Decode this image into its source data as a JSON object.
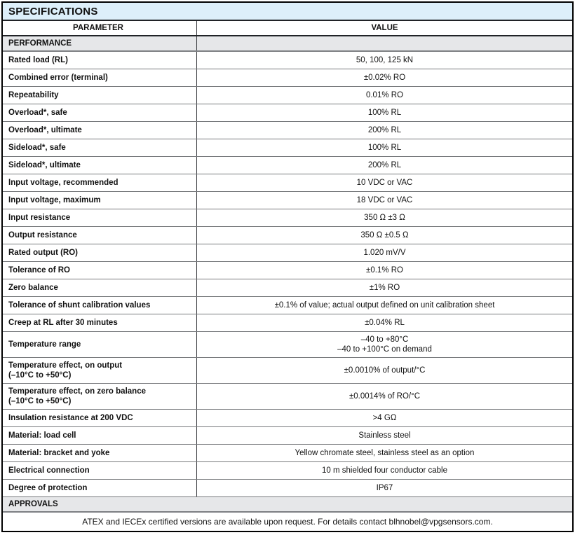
{
  "table": {
    "title": "SPECIFICATIONS",
    "columns": {
      "parameter": "PARAMETER",
      "value": "VALUE"
    },
    "sections": {
      "performance": "PERFORMANCE",
      "approvals": "APPROVALS"
    },
    "rows": [
      {
        "param": [
          "Rated load (RL)"
        ],
        "value": [
          "50, 100, 125 kN"
        ]
      },
      {
        "param": [
          "Combined error (terminal)"
        ],
        "value": [
          "±0.02% RO"
        ]
      },
      {
        "param": [
          "Repeatability"
        ],
        "value": [
          "0.01% RO"
        ]
      },
      {
        "param": [
          "Overload*, safe"
        ],
        "value": [
          "100% RL"
        ]
      },
      {
        "param": [
          "Overload*, ultimate"
        ],
        "value": [
          "200% RL"
        ]
      },
      {
        "param": [
          "Sideload*, safe"
        ],
        "value": [
          "100% RL"
        ]
      },
      {
        "param": [
          "Sideload*, ultimate"
        ],
        "value": [
          "200% RL"
        ]
      },
      {
        "param": [
          "Input voltage, recommended"
        ],
        "value": [
          "10 VDC or VAC"
        ]
      },
      {
        "param": [
          "Input voltage, maximum"
        ],
        "value": [
          "18 VDC or VAC"
        ]
      },
      {
        "param": [
          "Input resistance"
        ],
        "value": [
          "350 Ω ±3 Ω"
        ]
      },
      {
        "param": [
          "Output resistance"
        ],
        "value": [
          "350 Ω ±0.5 Ω"
        ]
      },
      {
        "param": [
          "Rated output (RO)"
        ],
        "value": [
          "1.020 mV/V"
        ]
      },
      {
        "param": [
          "Tolerance of RO"
        ],
        "value": [
          "±0.1% RO"
        ]
      },
      {
        "param": [
          "Zero balance"
        ],
        "value": [
          "±1% RO"
        ]
      },
      {
        "param": [
          "Tolerance of shunt calibration values"
        ],
        "value": [
          "±0.1% of value; actual output defined on unit calibration sheet"
        ]
      },
      {
        "param": [
          "Creep at RL after 30 minutes"
        ],
        "value": [
          "±0.04% RL"
        ]
      },
      {
        "param": [
          "Temperature range"
        ],
        "value": [
          "–40 to +80°C",
          "–40 to +100°C on demand"
        ]
      },
      {
        "param": [
          "Temperature effect, on output",
          "(–10°C to +50°C)"
        ],
        "value": [
          "±0.0010% of output/°C"
        ]
      },
      {
        "param": [
          "Temperature effect, on zero balance",
          "(–10°C to +50°C)"
        ],
        "value": [
          "±0.0014% of RO/°C"
        ]
      },
      {
        "param": [
          "Insulation resistance at 200 VDC"
        ],
        "value": [
          ">4 GΩ"
        ]
      },
      {
        "param": [
          "Material: load cell"
        ],
        "value": [
          "Stainless steel"
        ]
      },
      {
        "param": [
          "Material: bracket and yoke"
        ],
        "value": [
          "Yellow chromate steel, stainless steel as an option"
        ]
      },
      {
        "param": [
          "Electrical connection"
        ],
        "value": [
          "10 m shielded four conductor cable"
        ]
      },
      {
        "param": [
          "Degree of protection"
        ],
        "value": [
          "IP67"
        ]
      }
    ],
    "footer": "ATEX and IECEx certified versions are available upon request. For details contact blhnobel@vpgsensors.com."
  },
  "colors": {
    "title_bg": "#ddeffa",
    "section_bg": "#e6e7e9",
    "outer_border": "#000000",
    "row_separator": "#77797c",
    "header_separator": "#202226"
  }
}
